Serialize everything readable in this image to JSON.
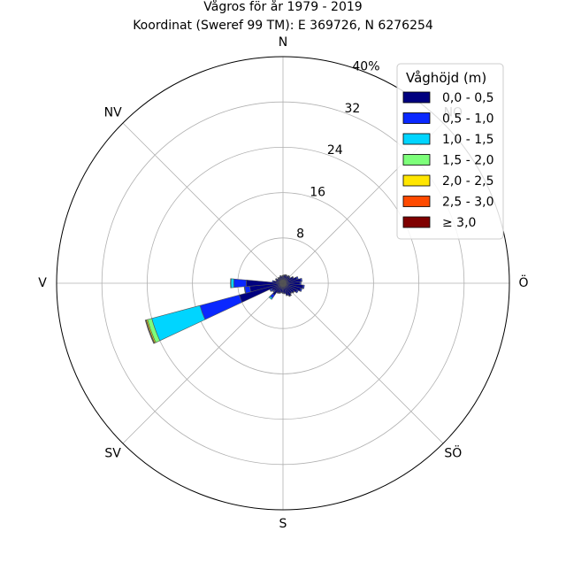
{
  "chart_data": {
    "type": "windrose",
    "title": "Vågros för år 1979 - 2019",
    "subtitle": "Koordinat (Sweref 99 TM): E 369726, N 6276254",
    "direction_labels": [
      "N",
      "NV",
      "V",
      "SV",
      "S",
      "SÖ",
      "Ö",
      "NO"
    ],
    "direction_angles_deg": [
      0,
      315,
      270,
      225,
      180,
      135,
      90,
      45
    ],
    "radial_ticks": [
      8,
      16,
      24,
      32
    ],
    "radial_max_label": "40%",
    "radial_max": 40,
    "sector_count": 36,
    "legend": {
      "title": "Våghöjd (m)",
      "placement": "top-right",
      "entries": [
        {
          "label": "0,0 - 0,5",
          "color": "#00007f"
        },
        {
          "label": "0,5 - 1,0",
          "color": "#0a28ff"
        },
        {
          "label": "1,0 - 1,5",
          "color": "#00d5ff"
        },
        {
          "label": "1,5 - 2,0",
          "color": "#7dff7a"
        },
        {
          "label": "2,0 - 2,5",
          "color": "#ffe600"
        },
        {
          "label": "2,5 - 3,0",
          "color": "#ff4a00"
        },
        {
          "label": "≥ 3,0",
          "color": "#7f0000"
        }
      ]
    },
    "sectors": [
      {
        "direction_deg": 0,
        "values": [
          1.3,
          0.1,
          0,
          0,
          0,
          0,
          0
        ]
      },
      {
        "direction_deg": 10,
        "values": [
          1.4,
          0.1,
          0,
          0,
          0,
          0,
          0
        ]
      },
      {
        "direction_deg": 20,
        "values": [
          1.5,
          0.1,
          0,
          0,
          0,
          0,
          0
        ]
      },
      {
        "direction_deg": 30,
        "values": [
          1.4,
          0.1,
          0,
          0,
          0,
          0,
          0
        ]
      },
      {
        "direction_deg": 40,
        "values": [
          1.6,
          0.1,
          0,
          0,
          0,
          0,
          0
        ]
      },
      {
        "direction_deg": 50,
        "values": [
          1.5,
          0.1,
          0,
          0,
          0,
          0,
          0
        ]
      },
      {
        "direction_deg": 60,
        "values": [
          2.0,
          0.1,
          0,
          0,
          0,
          0,
          0
        ]
      },
      {
        "direction_deg": 70,
        "values": [
          2.6,
          0.2,
          0,
          0,
          0,
          0,
          0
        ]
      },
      {
        "direction_deg": 80,
        "values": [
          3.2,
          0.2,
          0,
          0,
          0,
          0,
          0
        ]
      },
      {
        "direction_deg": 90,
        "values": [
          3.0,
          0.2,
          0,
          0,
          0,
          0,
          0
        ]
      },
      {
        "direction_deg": 100,
        "values": [
          3.6,
          0.2,
          0,
          0,
          0,
          0,
          0
        ]
      },
      {
        "direction_deg": 110,
        "values": [
          3.3,
          0.2,
          0,
          0,
          0,
          0,
          0
        ]
      },
      {
        "direction_deg": 120,
        "values": [
          2.8,
          0.2,
          0,
          0,
          0,
          0,
          0
        ]
      },
      {
        "direction_deg": 130,
        "values": [
          2.4,
          0.1,
          0,
          0,
          0,
          0,
          0
        ]
      },
      {
        "direction_deg": 140,
        "values": [
          2.2,
          0.1,
          0,
          0,
          0,
          0,
          0
        ]
      },
      {
        "direction_deg": 150,
        "values": [
          2.5,
          0.1,
          0,
          0,
          0,
          0,
          0
        ]
      },
      {
        "direction_deg": 160,
        "values": [
          2.2,
          0.1,
          0,
          0,
          0,
          0,
          0
        ]
      },
      {
        "direction_deg": 170,
        "values": [
          1.8,
          0.1,
          0,
          0,
          0,
          0,
          0
        ]
      },
      {
        "direction_deg": 180,
        "values": [
          1.7,
          0.1,
          0,
          0,
          0,
          0,
          0
        ]
      },
      {
        "direction_deg": 190,
        "values": [
          1.6,
          0.1,
          0,
          0,
          0,
          0,
          0
        ]
      },
      {
        "direction_deg": 200,
        "values": [
          1.8,
          0.1,
          0,
          0,
          0,
          0,
          0
        ]
      },
      {
        "direction_deg": 210,
        "values": [
          1.9,
          0.1,
          0,
          0,
          0,
          0,
          0
        ]
      },
      {
        "direction_deg": 220,
        "values": [
          2.6,
          0.6,
          0.3,
          0,
          0,
          0,
          0
        ]
      },
      {
        "direction_deg": 230,
        "values": [
          2.0,
          0.2,
          0.1,
          0,
          0,
          0,
          0
        ]
      },
      {
        "direction_deg": 240,
        "values": [
          2.2,
          0.3,
          0.1,
          0,
          0,
          0,
          0
        ]
      },
      {
        "direction_deg": 250,
        "values": [
          8.0,
          7.2,
          8.8,
          0.8,
          0.2,
          0.1,
          0.1
        ]
      },
      {
        "direction_deg": 260,
        "values": [
          5.9,
          0.9,
          0.1,
          0,
          0,
          0,
          0
        ]
      },
      {
        "direction_deg": 270,
        "values": [
          6.5,
          2.2,
          0.5,
          0.1,
          0,
          0,
          0
        ]
      },
      {
        "direction_deg": 280,
        "values": [
          1.7,
          0.2,
          0,
          0,
          0,
          0,
          0
        ]
      },
      {
        "direction_deg": 290,
        "values": [
          1.2,
          0.1,
          0,
          0,
          0,
          0,
          0
        ]
      },
      {
        "direction_deg": 300,
        "values": [
          1.4,
          0.1,
          0,
          0,
          0,
          0,
          0
        ]
      },
      {
        "direction_deg": 310,
        "values": [
          1.1,
          0.1,
          0,
          0,
          0,
          0,
          0
        ]
      },
      {
        "direction_deg": 320,
        "values": [
          1.2,
          0.1,
          0,
          0,
          0,
          0,
          0
        ]
      },
      {
        "direction_deg": 330,
        "values": [
          1.1,
          0.1,
          0,
          0,
          0,
          0,
          0
        ]
      },
      {
        "direction_deg": 340,
        "values": [
          1.3,
          0.1,
          0,
          0,
          0,
          0,
          0
        ]
      },
      {
        "direction_deg": 350,
        "values": [
          1.2,
          0.1,
          0,
          0,
          0,
          0,
          0
        ]
      }
    ]
  }
}
